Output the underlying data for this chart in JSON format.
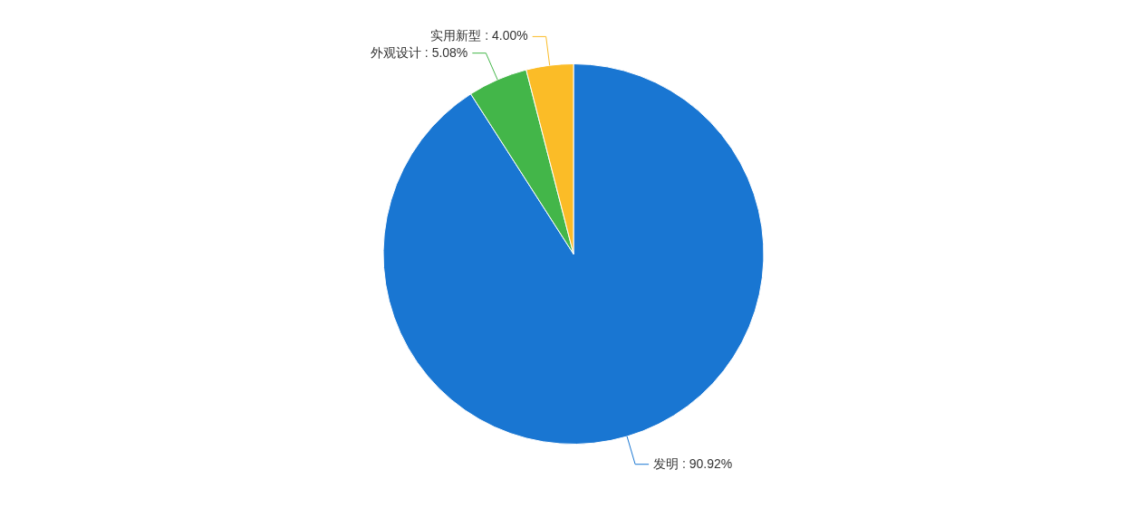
{
  "chart_data": {
    "type": "pie",
    "categories": [
      "发明",
      "外观设计",
      "实用新型"
    ],
    "values": [
      90.92,
      5.08,
      4.0
    ],
    "colors": [
      "#1976d2",
      "#43b649",
      "#fbbc27"
    ],
    "value_labels": [
      "90.92%",
      "5.08%",
      "4.00%"
    ]
  }
}
